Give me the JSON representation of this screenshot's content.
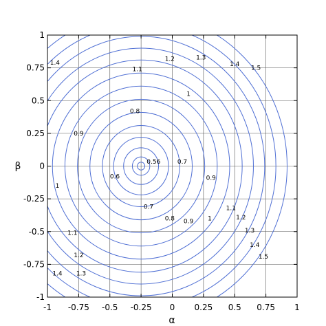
{
  "chart_data": {
    "type": "contour",
    "xlabel": "α",
    "ylabel": "β",
    "xlim": [
      -1,
      1
    ],
    "ylim": [
      -1,
      1
    ],
    "grid": true,
    "line_color": "#4f6fd4",
    "center": [
      -0.25,
      0
    ],
    "levels": [
      0.56,
      0.6,
      0.7,
      0.8,
      0.9,
      1,
      1.1,
      1.2,
      1.3,
      1.4,
      1.5
    ],
    "radii": [
      0.03,
      0.07,
      0.14,
      0.22,
      0.31,
      0.41,
      0.51,
      0.61,
      0.71,
      0.81,
      0.9,
      0.99,
      1.08,
      1.17
    ],
    "x_ticks": [
      -1,
      -0.75,
      -0.5,
      -0.25,
      0,
      0.25,
      0.5,
      0.75,
      1
    ],
    "x_tick_labels": [
      "-1",
      "-0.75",
      "-0.5",
      "-0.25",
      "0",
      "0.25",
      "0.5",
      "0.75",
      "1"
    ],
    "y_ticks": [
      -1,
      -0.75,
      -0.5,
      -0.25,
      0,
      0.25,
      0.5,
      0.75,
      1
    ],
    "y_tick_labels": [
      "-1",
      "-0.75",
      "-0.5",
      "-0.25",
      "0",
      "0.25",
      "0.5",
      "0.75",
      "1"
    ],
    "contour_labels": [
      {
        "text": "0.56",
        "x": -0.15,
        "y": 0.035
      },
      {
        "text": "0.6",
        "x": -0.46,
        "y": -0.08
      },
      {
        "text": "0.7",
        "x": 0.08,
        "y": 0.035
      },
      {
        "text": "0.7",
        "x": -0.19,
        "y": -0.31
      },
      {
        "text": "0.8",
        "x": -0.3,
        "y": 0.42
      },
      {
        "text": "0.8",
        "x": -0.02,
        "y": -0.4
      },
      {
        "text": "0.9",
        "x": -0.75,
        "y": 0.25
      },
      {
        "text": "0.9",
        "x": 0.31,
        "y": -0.09
      },
      {
        "text": "0.9",
        "x": 0.13,
        "y": -0.42
      },
      {
        "text": "1",
        "x": 0.13,
        "y": 0.55
      },
      {
        "text": "1",
        "x": -0.92,
        "y": -0.15
      },
      {
        "text": "1",
        "x": 0.3,
        "y": -0.4
      },
      {
        "text": "1.1",
        "x": -0.28,
        "y": 0.74
      },
      {
        "text": "1.1",
        "x": 0.47,
        "y": -0.32
      },
      {
        "text": "1.1",
        "x": -0.8,
        "y": -0.51
      },
      {
        "text": "1.2",
        "x": -0.02,
        "y": 0.82
      },
      {
        "text": "1.2",
        "x": 0.55,
        "y": -0.39
      },
      {
        "text": "1.2",
        "x": -0.75,
        "y": -0.68
      },
      {
        "text": "1.3",
        "x": 0.23,
        "y": 0.83
      },
      {
        "text": "1.3",
        "x": 0.62,
        "y": -0.49
      },
      {
        "text": "1.3",
        "x": -0.73,
        "y": -0.82
      },
      {
        "text": "1.4",
        "x": -0.94,
        "y": 0.79
      },
      {
        "text": "1.4",
        "x": 0.5,
        "y": 0.78
      },
      {
        "text": "1.4",
        "x": 0.66,
        "y": -0.6
      },
      {
        "text": "1.4",
        "x": -0.92,
        "y": -0.82
      },
      {
        "text": "1.5",
        "x": 0.67,
        "y": 0.75
      },
      {
        "text": "1.5",
        "x": 0.73,
        "y": -0.69
      }
    ]
  }
}
